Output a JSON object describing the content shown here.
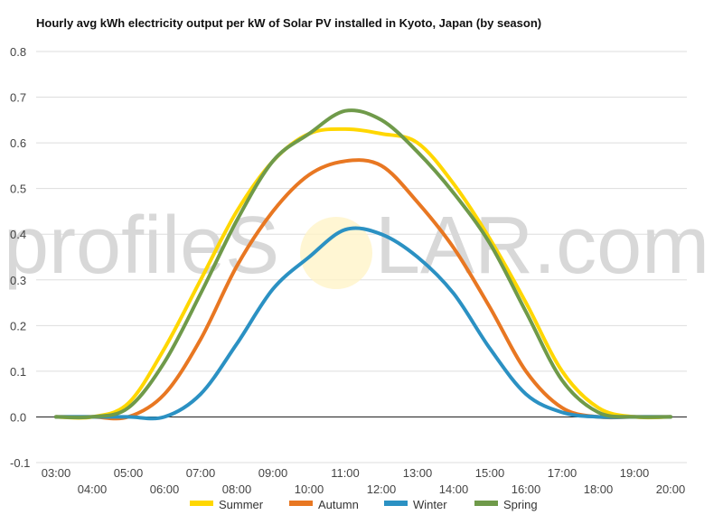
{
  "chart_data": {
    "type": "line",
    "title": "Hourly avg kWh electricity output per kW of Solar PV installed in Kyoto, Japan (by season)",
    "xlabel": "",
    "ylabel": "",
    "ylim": [
      -0.1,
      0.8
    ],
    "yticks": [
      "-0.1",
      "0.0",
      "0.1",
      "0.2",
      "0.3",
      "0.4",
      "0.5",
      "0.6",
      "0.7",
      "0.8"
    ],
    "x": [
      "03:00",
      "04:00",
      "05:00",
      "06:00",
      "07:00",
      "08:00",
      "09:00",
      "10:00",
      "11:00",
      "12:00",
      "13:00",
      "14:00",
      "15:00",
      "16:00",
      "17:00",
      "18:00",
      "19:00",
      "20:00"
    ],
    "grid": true,
    "legend_position": "bottom",
    "series": [
      {
        "name": "Summer",
        "color": "#FFD700",
        "values": [
          0,
          0,
          0.03,
          0.15,
          0.3,
          0.45,
          0.56,
          0.62,
          0.63,
          0.62,
          0.6,
          0.51,
          0.39,
          0.25,
          0.1,
          0.02,
          0,
          0
        ]
      },
      {
        "name": "Autumn",
        "color": "#E87722",
        "values": [
          0,
          0,
          0,
          0.05,
          0.17,
          0.33,
          0.45,
          0.53,
          0.56,
          0.55,
          0.47,
          0.37,
          0.24,
          0.1,
          0.02,
          0,
          0,
          0
        ]
      },
      {
        "name": "Winter",
        "color": "#2B91C3",
        "values": [
          0,
          0,
          0,
          0,
          0.05,
          0.16,
          0.28,
          0.35,
          0.41,
          0.4,
          0.35,
          0.27,
          0.15,
          0.05,
          0.01,
          0,
          0,
          0
        ]
      },
      {
        "name": "Spring",
        "color": "#6F9A4A",
        "values": [
          0,
          0,
          0.02,
          0.12,
          0.27,
          0.43,
          0.56,
          0.62,
          0.67,
          0.65,
          0.58,
          0.49,
          0.38,
          0.23,
          0.08,
          0.01,
          0,
          0
        ]
      }
    ]
  },
  "watermark": {
    "text_left": "profileS",
    "text_right": "LAR.com"
  }
}
